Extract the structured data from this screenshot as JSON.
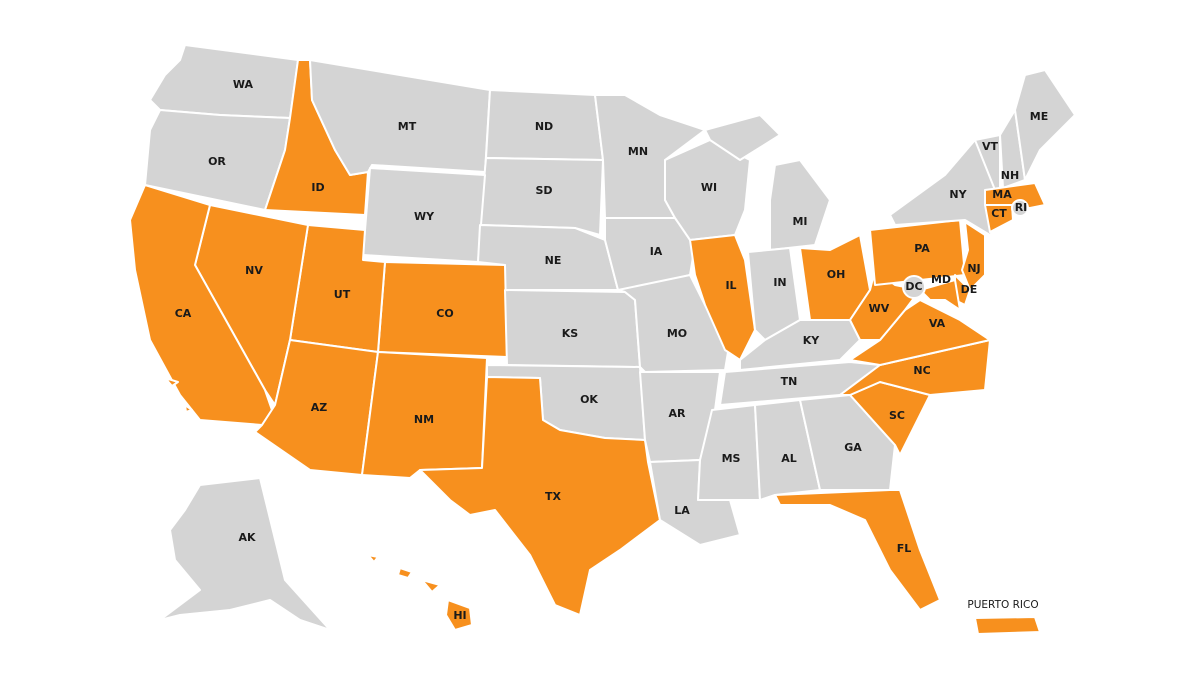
{
  "colors": {
    "highlighted": "#F7901E",
    "default": "#D4D4D4",
    "border": "#FFFFFF",
    "label": "#1A1A1A"
  },
  "states": [
    {
      "code": "WA",
      "label": "WA",
      "highlighted": false
    },
    {
      "code": "OR",
      "label": "OR",
      "highlighted": false
    },
    {
      "code": "ID",
      "label": "ID",
      "highlighted": true
    },
    {
      "code": "MT",
      "label": "MT",
      "highlighted": false
    },
    {
      "code": "ND",
      "label": "ND",
      "highlighted": false
    },
    {
      "code": "SD",
      "label": "SD",
      "highlighted": false
    },
    {
      "code": "WY",
      "label": "WY",
      "highlighted": false
    },
    {
      "code": "NE",
      "label": "NE",
      "highlighted": false
    },
    {
      "code": "CO",
      "label": "CO",
      "highlighted": true
    },
    {
      "code": "UT",
      "label": "UT",
      "highlighted": true
    },
    {
      "code": "NV",
      "label": "NV",
      "highlighted": true
    },
    {
      "code": "CA",
      "label": "CA",
      "highlighted": true
    },
    {
      "code": "AZ",
      "label": "AZ",
      "highlighted": true
    },
    {
      "code": "NM",
      "label": "NM",
      "highlighted": true
    },
    {
      "code": "KS",
      "label": "KS",
      "highlighted": false
    },
    {
      "code": "OK",
      "label": "OK",
      "highlighted": false
    },
    {
      "code": "TX",
      "label": "TX",
      "highlighted": true
    },
    {
      "code": "MN",
      "label": "MN",
      "highlighted": false
    },
    {
      "code": "IA",
      "label": "IA",
      "highlighted": false
    },
    {
      "code": "MO",
      "label": "MO",
      "highlighted": false
    },
    {
      "code": "AR",
      "label": "AR",
      "highlighted": false
    },
    {
      "code": "LA",
      "label": "LA",
      "highlighted": false
    },
    {
      "code": "WI",
      "label": "WI",
      "highlighted": false
    },
    {
      "code": "IL",
      "label": "IL",
      "highlighted": true
    },
    {
      "code": "MI",
      "label": "MI",
      "highlighted": false
    },
    {
      "code": "IN",
      "label": "IN",
      "highlighted": false
    },
    {
      "code": "OH",
      "label": "OH",
      "highlighted": true
    },
    {
      "code": "KY",
      "label": "KY",
      "highlighted": false
    },
    {
      "code": "TN",
      "label": "TN",
      "highlighted": false
    },
    {
      "code": "MS",
      "label": "MS",
      "highlighted": false
    },
    {
      "code": "AL",
      "label": "AL",
      "highlighted": false
    },
    {
      "code": "GA",
      "label": "GA",
      "highlighted": false
    },
    {
      "code": "FL",
      "label": "FL",
      "highlighted": true
    },
    {
      "code": "SC",
      "label": "SC",
      "highlighted": true
    },
    {
      "code": "NC",
      "label": "NC",
      "highlighted": true
    },
    {
      "code": "VA",
      "label": "VA",
      "highlighted": true
    },
    {
      "code": "WV",
      "label": "WV",
      "highlighted": true
    },
    {
      "code": "PA",
      "label": "PA",
      "highlighted": true
    },
    {
      "code": "NY",
      "label": "NY",
      "highlighted": false
    },
    {
      "code": "VT",
      "label": "VT",
      "highlighted": false
    },
    {
      "code": "NH",
      "label": "NH",
      "highlighted": false
    },
    {
      "code": "ME",
      "label": "ME",
      "highlighted": false
    },
    {
      "code": "MA",
      "label": "MA",
      "highlighted": true
    },
    {
      "code": "CT",
      "label": "CT",
      "highlighted": true
    },
    {
      "code": "RI",
      "label": "RI",
      "highlighted": false
    },
    {
      "code": "NJ",
      "label": "NJ",
      "highlighted": true
    },
    {
      "code": "DE",
      "label": "DE",
      "highlighted": true
    },
    {
      "code": "MD",
      "label": "MD",
      "highlighted": true
    },
    {
      "code": "DC",
      "label": "DC",
      "highlighted": false
    },
    {
      "code": "AK",
      "label": "AK",
      "highlighted": false
    },
    {
      "code": "HI",
      "label": "HI",
      "highlighted": true
    },
    {
      "code": "PR",
      "label": "PUERTO RICO",
      "highlighted": true
    }
  ]
}
